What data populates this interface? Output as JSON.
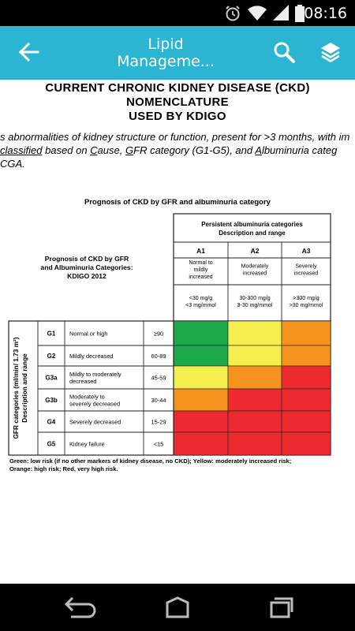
{
  "status_bar": {
    "time": "08:16",
    "icons": [
      "alarm-icon",
      "wifi-icon",
      "signal-icon",
      "battery-icon"
    ]
  },
  "app_bar": {
    "title_line1": "Lipid",
    "title_line2": "Manageme...",
    "color": "#2cb5d2"
  },
  "document": {
    "title_line1": "CURRENT CHRONIC KIDNEY DISEASE (CKD) NOMENCLATURE",
    "title_line2": "USED BY KDIGO",
    "intro_line1": "s abnormalities of kidney structure or function, present for >3 months, with im",
    "intro_line2_a": " classified",
    "intro_line2_b": " based on ",
    "intro_line2_c": "C",
    "intro_line2_d": "ause, ",
    "intro_line2_e": "G",
    "intro_line2_f": "FR category (G1-G5), and ",
    "intro_line2_g": "A",
    "intro_line2_h": "lbuminuria categ",
    "intro_line3": "CGA."
  },
  "figure": {
    "title": "Prognosis of CKD by GFR and albuminuria category",
    "left_heading_1": "Prognosis of CKD by GFR",
    "left_heading_2": "and Albuminuria Categories:",
    "left_heading_3": "KDIGO 2012",
    "albuminuria_header_1": "Persistent albuminuria categories",
    "albuminuria_header_2": "Description and range",
    "gfr_axis_1": "GFR categories (ml/min/ 1.73 m²)",
    "gfr_axis_2": "Description and range",
    "a_categories": [
      {
        "code": "A1",
        "desc": [
          "Normal to",
          "mildly",
          "increased"
        ],
        "range": [
          "<30 mg/g",
          "<3 mg/mmol"
        ]
      },
      {
        "code": "A2",
        "desc": [
          "Moderately",
          "increased"
        ],
        "range": [
          "30-300 mg/g",
          "3-30 mg/mmol"
        ]
      },
      {
        "code": "A3",
        "desc": [
          "Severely",
          "increased"
        ],
        "range": [
          ">300 mg/g",
          ">30 mg/mmol"
        ]
      }
    ],
    "g_categories": [
      {
        "code": "G1",
        "desc": [
          "Normal or high"
        ],
        "range": "≥90",
        "risk": [
          "green",
          "yellow",
          "orange"
        ]
      },
      {
        "code": "G2",
        "desc": [
          "Mildly decreased"
        ],
        "range": "60-89",
        "risk": [
          "green",
          "yellow",
          "orange"
        ]
      },
      {
        "code": "G3a",
        "desc": [
          "Mildly to moderately",
          "decreased"
        ],
        "range": "45-59",
        "risk": [
          "yellow",
          "orange",
          "red"
        ]
      },
      {
        "code": "G3b",
        "desc": [
          "Moderately to",
          "severely decreased"
        ],
        "range": "30-44",
        "risk": [
          "orange",
          "red",
          "red"
        ]
      },
      {
        "code": "G4",
        "desc": [
          "Severely decreased"
        ],
        "range": "15-29",
        "risk": [
          "red",
          "red",
          "red"
        ]
      },
      {
        "code": "G5",
        "desc": [
          "Kidney failure"
        ],
        "range": "<15",
        "risk": [
          "red",
          "red",
          "red"
        ]
      }
    ],
    "colors": {
      "green": "#1fa84a",
      "yellow": "#f4ee4e",
      "orange": "#f6921e",
      "red": "#ec2a2f"
    },
    "legend_line1": "Green: low risk (if no other markers of kidney disease, no CKD); Yellow: moderately increased risk;",
    "legend_line2": "Orange: high risk; Red, very high risk."
  },
  "nav_bar": {
    "buttons": [
      "back-nav-icon",
      "home-nav-icon",
      "recents-nav-icon"
    ]
  }
}
